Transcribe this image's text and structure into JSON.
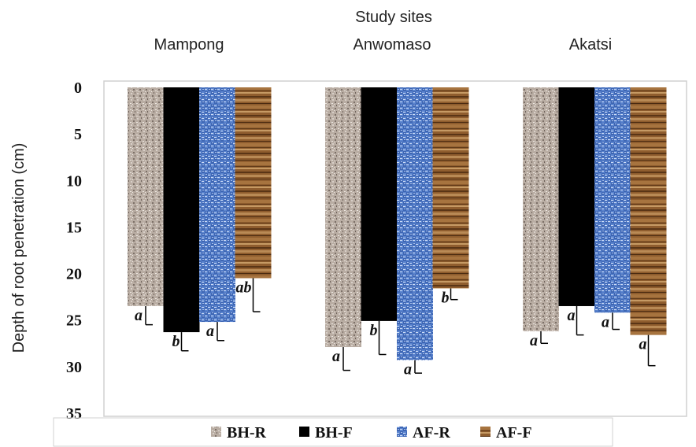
{
  "chart_data": {
    "type": "bar",
    "top_label": "Study sites",
    "categories": [
      "Mampong",
      "Anwomaso",
      "Akatsi"
    ],
    "ylabel": "Depth of root penetration (cm)",
    "ylim": [
      0,
      35
    ],
    "y_inverted": true,
    "y_ticks": [
      0,
      5,
      10,
      15,
      20,
      25,
      30,
      35
    ],
    "grid": false,
    "legend_position": "bottom",
    "error_bars": true,
    "series": [
      {
        "name": "BH-R",
        "color": "#b7aaa0",
        "pattern": "speckled",
        "values": [
          23.5,
          27.9,
          26.2
        ],
        "errors": [
          2.0,
          2.5,
          1.3
        ],
        "letters": [
          "a",
          "a",
          "a"
        ]
      },
      {
        "name": "BH-F",
        "color": "#000000",
        "pattern": "solid",
        "values": [
          26.3,
          25.1,
          23.5
        ],
        "errors": [
          2.0,
          3.6,
          3.1
        ],
        "letters": [
          "b",
          "b",
          "a"
        ]
      },
      {
        "name": "AF-R",
        "color": "#4f79c4",
        "pattern": "woven",
        "values": [
          25.2,
          29.3,
          24.2
        ],
        "errors": [
          2.0,
          1.4,
          1.8
        ],
        "letters": [
          "a",
          "a",
          "a"
        ]
      },
      {
        "name": "AF-F",
        "color": "#8a5a2b",
        "pattern": "wood",
        "values": [
          20.5,
          21.6,
          26.6
        ],
        "errors": [
          3.6,
          1.2,
          3.3
        ],
        "letters": [
          "ab",
          "b",
          "a"
        ]
      }
    ]
  }
}
